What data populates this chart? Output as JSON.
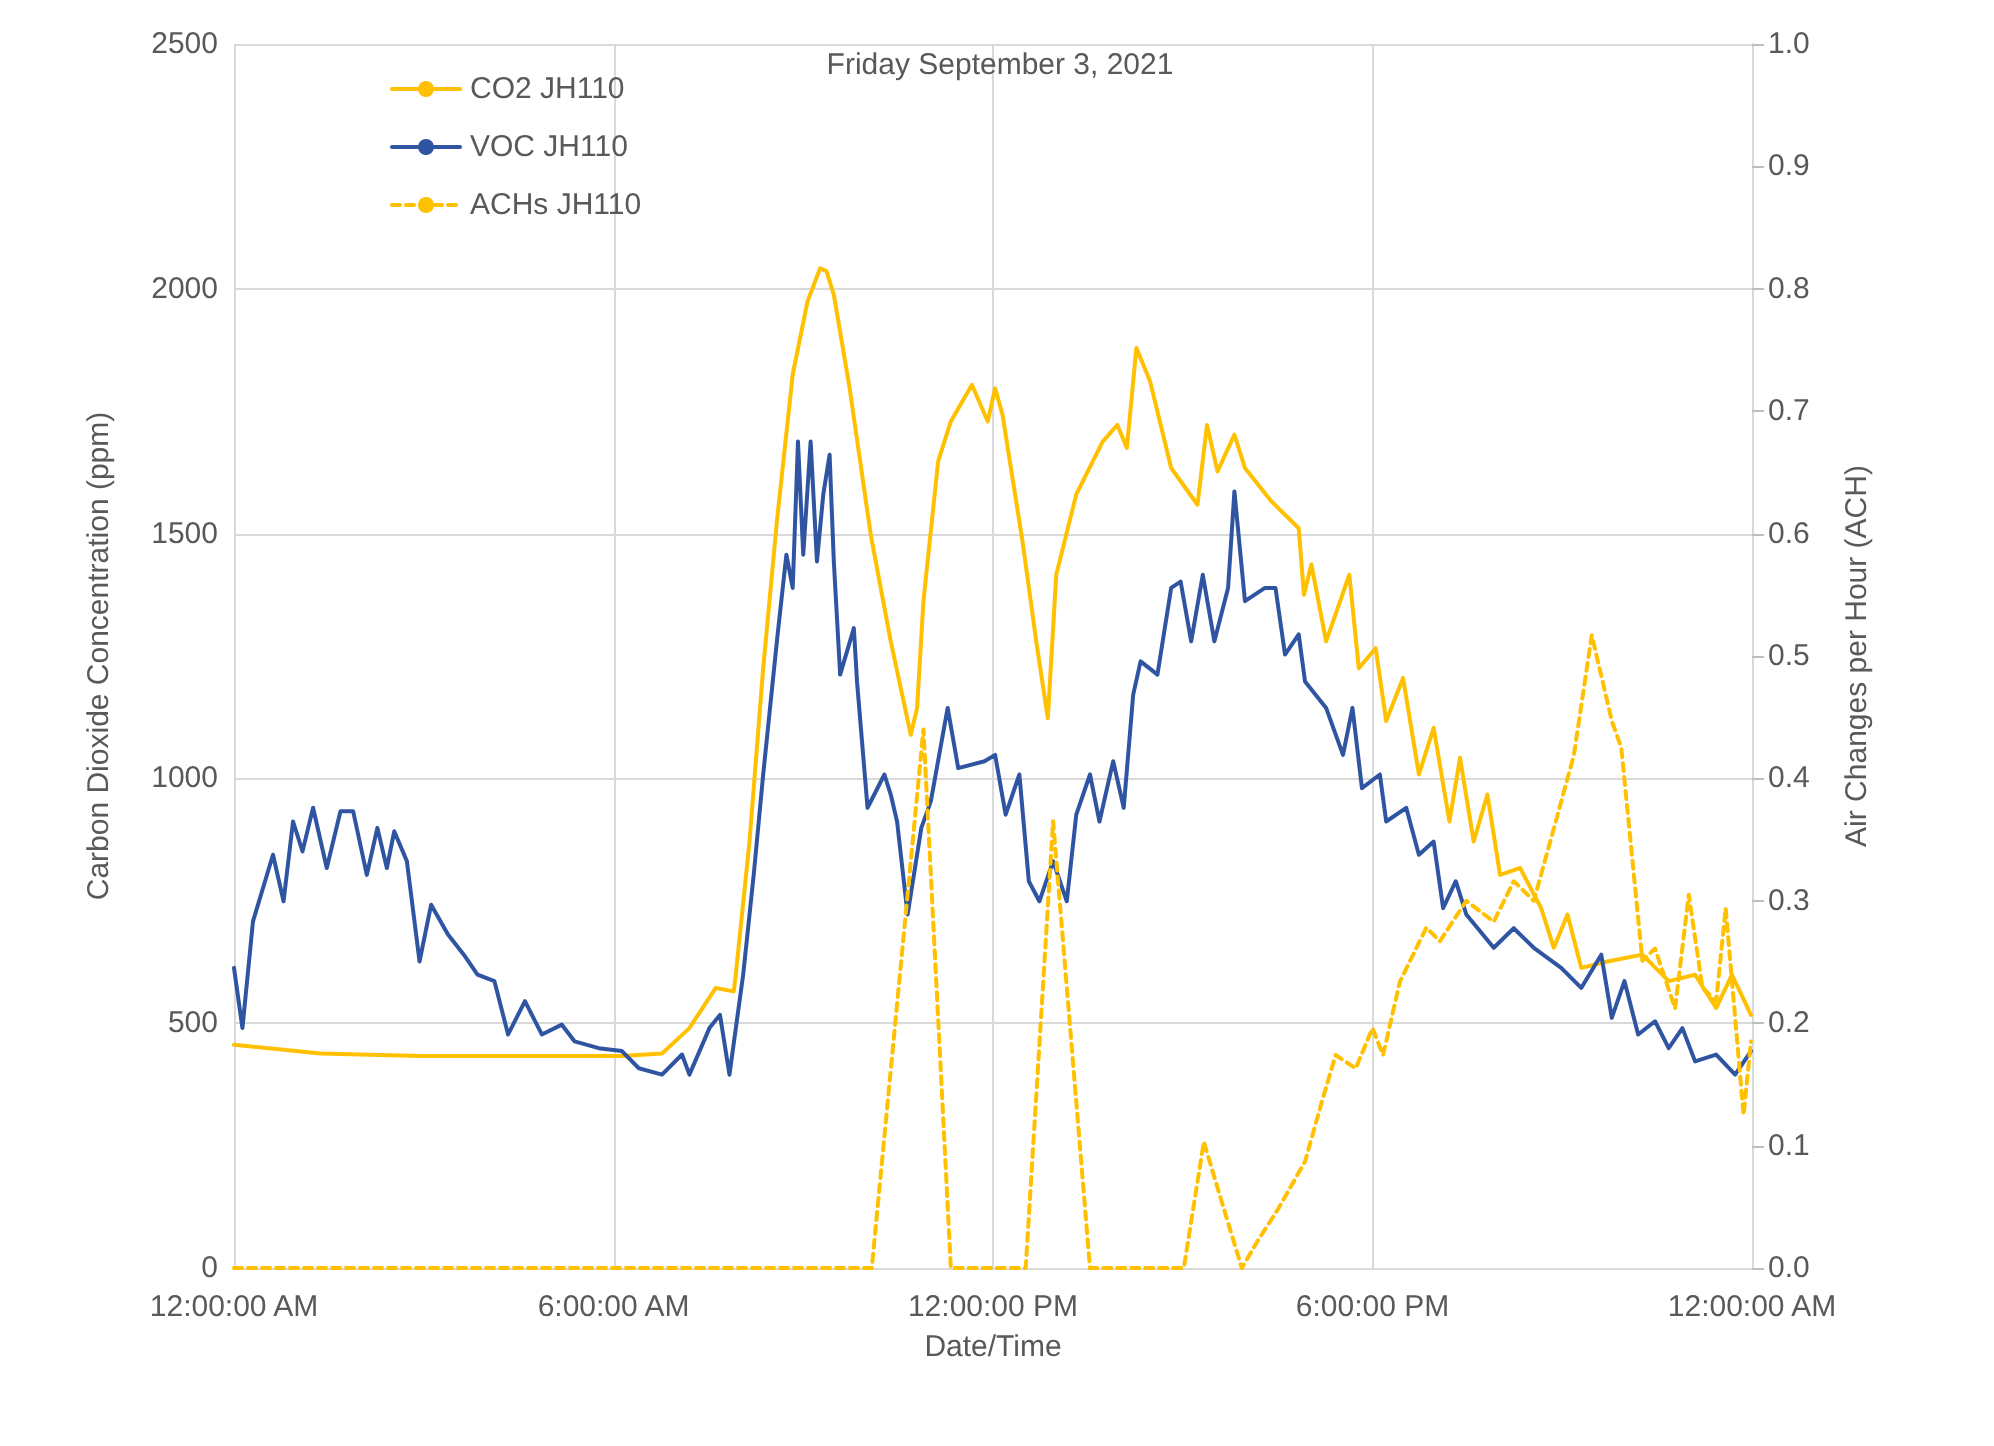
{
  "chart_data": {
    "type": "line",
    "title": "Friday September 3, 2021",
    "xlabel": "Date/Time",
    "ylabel": "Carbon Dioxide Concentration (ppm)",
    "y2label": "Air Changes per Hour (ACH)",
    "xlim": [
      "2021-09-03T00:00",
      "2021-09-04T00:00"
    ],
    "xticks": [
      {
        "value": "2021-09-03T00:00",
        "label": "12:00:00 AM"
      },
      {
        "value": "2021-09-03T06:00",
        "label": "6:00:00 AM"
      },
      {
        "value": "2021-09-03T12:00",
        "label": "12:00:00 PM"
      },
      {
        "value": "2021-09-03T18:00",
        "label": "6:00:00 PM"
      },
      {
        "value": "2021-09-04T00:00",
        "label": "12:00:00 AM"
      }
    ],
    "ylim": [
      0,
      2500
    ],
    "yticks": [
      0,
      500,
      1000,
      1500,
      2000,
      2500
    ],
    "y2lim": [
      0,
      1
    ],
    "y2ticks": [
      {
        "value": 0,
        "label": "0.0"
      },
      {
        "value": 0.1,
        "label": "0.1"
      },
      {
        "value": 0.2,
        "label": "0.2"
      },
      {
        "value": 0.3,
        "label": "0.3"
      },
      {
        "value": 0.4,
        "label": "0.4"
      },
      {
        "value": 0.5,
        "label": "0.5"
      },
      {
        "value": 0.6,
        "label": "0.6"
      },
      {
        "value": 0.7,
        "label": "0.7"
      },
      {
        "value": 0.8,
        "label": "0.8"
      },
      {
        "value": 0.9,
        "label": "0.9"
      },
      {
        "value": 1,
        "label": "1.0"
      }
    ],
    "grid": true,
    "legend": "top left",
    "marker": "none",
    "series": [
      {
        "name": "CO2 JH110",
        "color": "#ffc000",
        "line_style": "solid",
        "x": [
          "2021-09-03T00:00",
          "2021-09-03T01:22",
          "2021-09-03T02:57",
          "2021-09-03T04:32",
          "2021-09-03T06:08",
          "2021-09-03T06:46",
          "2021-09-03T07:12",
          "2021-09-03T07:37",
          "2021-09-03T07:54",
          "2021-09-03T07:56",
          "2021-09-03T08:09",
          "2021-09-03T08:22",
          "2021-09-03T08:35",
          "2021-09-03T08:50",
          "2021-09-03T09:04",
          "2021-09-03T09:16",
          "2021-09-03T09:22",
          "2021-09-03T09:29",
          "2021-09-03T09:44",
          "2021-09-03T10:04",
          "2021-09-03T10:23",
          "2021-09-03T10:42",
          "2021-09-03T10:48",
          "2021-09-03T10:54",
          "2021-09-03T11:08",
          "2021-09-03T11:20",
          "2021-09-03T11:40",
          "2021-09-03T11:55",
          "2021-09-03T12:02",
          "2021-09-03T12:09",
          "2021-09-03T12:28",
          "2021-09-03T12:41",
          "2021-09-03T12:52",
          "2021-09-03T13:00",
          "2021-09-03T13:19",
          "2021-09-03T13:44",
          "2021-09-03T13:58",
          "2021-09-03T14:07",
          "2021-09-03T14:16",
          "2021-09-03T14:29",
          "2021-09-03T14:49",
          "2021-09-03T15:14",
          "2021-09-03T15:23",
          "2021-09-03T15:33",
          "2021-09-03T15:49",
          "2021-09-03T15:59",
          "2021-09-03T16:24",
          "2021-09-03T16:50",
          "2021-09-03T16:55",
          "2021-09-03T17:02",
          "2021-09-03T17:16",
          "2021-09-03T17:38",
          "2021-09-03T17:47",
          "2021-09-03T18:03",
          "2021-09-03T18:13",
          "2021-09-03T18:29",
          "2021-09-03T18:44",
          "2021-09-03T18:58",
          "2021-09-03T19:13",
          "2021-09-03T19:23",
          "2021-09-03T19:36",
          "2021-09-03T19:49",
          "2021-09-03T20:01",
          "2021-09-03T20:20",
          "2021-09-03T20:40",
          "2021-09-03T20:52",
          "2021-09-03T21:05",
          "2021-09-03T21:18",
          "2021-09-03T21:43",
          "2021-09-03T22:16",
          "2021-09-03T22:41",
          "2021-09-03T23:06",
          "2021-09-03T23:26",
          "2021-09-03T23:41",
          "2021-09-03T23:59"
        ],
        "values": [
          456,
          438,
          433,
          433,
          433,
          438,
          490,
          572,
          565,
          599,
          871,
          1225,
          1525,
          1825,
          1974,
          2042,
          2036,
          1988,
          1797,
          1498,
          1280,
          1089,
          1144,
          1362,
          1648,
          1729,
          1804,
          1729,
          1797,
          1743,
          1484,
          1280,
          1123,
          1416,
          1580,
          1688,
          1722,
          1675,
          1879,
          1811,
          1634,
          1559,
          1722,
          1627,
          1702,
          1634,
          1566,
          1511,
          1375,
          1437,
          1280,
          1416,
          1225,
          1266,
          1117,
          1205,
          1008,
          1103,
          912,
          1042,
          871,
          967,
          803,
          817,
          735,
          654,
          722,
          613,
          626,
          640,
          586,
          599,
          531,
          599,
          517
        ]
      },
      {
        "name": "VOC JH110",
        "color": "#2f55a2",
        "line_style": "solid",
        "x": [
          "2021-09-03T00:00",
          "2021-09-03T00:08",
          "2021-09-03T00:18",
          "2021-09-03T00:37",
          "2021-09-03T00:47",
          "2021-09-03T00:56",
          "2021-09-03T01:05",
          "2021-09-03T01:15",
          "2021-09-03T01:28",
          "2021-09-03T01:41",
          "2021-09-03T01:53",
          "2021-09-03T02:06",
          "2021-09-03T02:16",
          "2021-09-03T02:25",
          "2021-09-03T02:32",
          "2021-09-03T02:44",
          "2021-09-03T02:56",
          "2021-09-03T03:07",
          "2021-09-03T03:23",
          "2021-09-03T03:38",
          "2021-09-03T03:51",
          "2021-09-03T04:07",
          "2021-09-03T04:20",
          "2021-09-03T04:36",
          "2021-09-03T04:52",
          "2021-09-03T05:11",
          "2021-09-03T05:23",
          "2021-09-03T05:46",
          "2021-09-03T06:08",
          "2021-09-03T06:24",
          "2021-09-03T06:46",
          "2021-09-03T07:05",
          "2021-09-03T07:12",
          "2021-09-03T07:31",
          "2021-09-03T07:41",
          "2021-09-03T07:50",
          "2021-09-03T08:03",
          "2021-09-03T08:13",
          "2021-09-03T08:22",
          "2021-09-03T08:35",
          "2021-09-03T08:44",
          "2021-09-03T08:50",
          "2021-09-03T08:55",
          "2021-09-03T09:00",
          "2021-09-03T09:07",
          "2021-09-03T09:13",
          "2021-09-03T09:19",
          "2021-09-03T09:25",
          "2021-09-03T09:29",
          "2021-09-03T09:35",
          "2021-09-03T09:48",
          "2021-09-03T09:51",
          "2021-09-03T10:01",
          "2021-09-03T10:17",
          "2021-09-03T10:23",
          "2021-09-03T10:29",
          "2021-09-03T10:39",
          "2021-09-03T10:52",
          "2021-09-03T11:01",
          "2021-09-03T11:17",
          "2021-09-03T11:27",
          "2021-09-03T11:52",
          "2021-09-03T12:02",
          "2021-09-03T12:12",
          "2021-09-03T12:25",
          "2021-09-03T12:34",
          "2021-09-03T12:44",
          "2021-09-03T12:57",
          "2021-09-03T13:10",
          "2021-09-03T13:19",
          "2021-09-03T13:32",
          "2021-09-03T13:41",
          "2021-09-03T13:54",
          "2021-09-03T14:04",
          "2021-09-03T14:13",
          "2021-09-03T14:20",
          "2021-09-03T14:36",
          "2021-09-03T14:49",
          "2021-09-03T14:58",
          "2021-09-03T15:08",
          "2021-09-03T15:19",
          "2021-09-03T15:30",
          "2021-09-03T15:43",
          "2021-09-03T15:49",
          "2021-09-03T15:59",
          "2021-09-03T16:18",
          "2021-09-03T16:28",
          "2021-09-03T16:37",
          "2021-09-03T16:50",
          "2021-09-03T16:56",
          "2021-09-03T17:16",
          "2021-09-03T17:32",
          "2021-09-03T17:41",
          "2021-09-03T17:50",
          "2021-09-03T18:07",
          "2021-09-03T18:13",
          "2021-09-03T18:32",
          "2021-09-03T18:44",
          "2021-09-03T18:58",
          "2021-09-03T19:07",
          "2021-09-03T19:19",
          "2021-09-03T19:29",
          "2021-09-03T19:55",
          "2021-09-03T20:14",
          "2021-09-03T20:33",
          "2021-09-03T20:59",
          "2021-09-03T21:18",
          "2021-09-03T21:37",
          "2021-09-03T21:47",
          "2021-09-03T21:59",
          "2021-09-03T22:12",
          "2021-09-03T22:28",
          "2021-09-03T22:41",
          "2021-09-03T22:54",
          "2021-09-03T23:06",
          "2021-09-03T23:26",
          "2021-09-03T23:44",
          "2021-09-03T23:59"
        ],
        "values": [
          613,
          490,
          708,
          844,
          749,
          912,
          851,
          940,
          817,
          933,
          933,
          803,
          899,
          817,
          892,
          831,
          626,
          742,
          681,
          640,
          599,
          586,
          477,
          545,
          477,
          497,
          463,
          449,
          443,
          408,
          395,
          436,
          395,
          490,
          517,
          395,
          599,
          803,
          1008,
          1280,
          1457,
          1389,
          1688,
          1457,
          1688,
          1443,
          1580,
          1661,
          1443,
          1212,
          1307,
          1198,
          940,
          1008,
          967,
          912,
          722,
          899,
          953,
          1144,
          1021,
          1035,
          1048,
          926,
          1008,
          790,
          749,
          831,
          749,
          926,
          1008,
          912,
          1035,
          940,
          1171,
          1239,
          1212,
          1389,
          1402,
          1280,
          1416,
          1280,
          1389,
          1586,
          1362,
          1389,
          1389,
          1253,
          1294,
          1198,
          1144,
          1048,
          1144,
          980,
          1008,
          912,
          940,
          844,
          871,
          735,
          790,
          722,
          654,
          694,
          654,
          613,
          572,
          640,
          511,
          586,
          477,
          504,
          449,
          490,
          422,
          436,
          395,
          443
        ]
      },
      {
        "name": "ACHs JH110",
        "color": "#ffc000",
        "line_style": "dashed",
        "axis": "y2",
        "x": [
          "2021-09-03T00:00",
          "2021-09-03T10:05",
          "2021-09-03T10:54",
          "2021-09-03T11:20",
          "2021-09-03T12:31",
          "2021-09-03T12:57",
          "2021-09-03T13:32",
          "2021-09-03T15:01",
          "2021-09-03T15:20",
          "2021-09-03T15:37",
          "2021-09-03T15:56",
          "2021-09-03T16:11",
          "2021-09-03T16:31",
          "2021-09-03T16:56",
          "2021-09-03T17:12",
          "2021-09-03T17:25",
          "2021-09-03T17:44",
          "2021-09-03T18:00",
          "2021-09-03T18:10",
          "2021-09-03T18:26",
          "2021-09-03T18:51",
          "2021-09-03T19:04",
          "2021-09-03T19:29",
          "2021-09-03T19:55",
          "2021-09-03T20:14",
          "2021-09-03T20:33",
          "2021-09-03T20:52",
          "2021-09-03T21:11",
          "2021-09-03T21:28",
          "2021-09-03T21:47",
          "2021-09-03T21:56",
          "2021-09-03T22:16",
          "2021-09-03T22:28",
          "2021-09-03T22:47",
          "2021-09-03T23:00",
          "2021-09-03T23:13",
          "2021-09-03T23:26",
          "2021-09-03T23:35",
          "2021-09-03T23:52",
          "2021-09-03T23:59"
        ],
        "values": [
          0,
          0,
          0.44,
          0,
          0,
          0.365,
          0,
          0,
          0.103,
          0.054,
          0,
          0.022,
          0.049,
          0.087,
          0.136,
          0.174,
          0.163,
          0.196,
          0.174,
          0.234,
          0.278,
          0.267,
          0.3,
          0.283,
          0.316,
          0.3,
          0.359,
          0.419,
          0.517,
          0.447,
          0.425,
          0.251,
          0.261,
          0.212,
          0.305,
          0.229,
          0.218,
          0.294,
          0.125,
          0.185
        ]
      }
    ]
  }
}
